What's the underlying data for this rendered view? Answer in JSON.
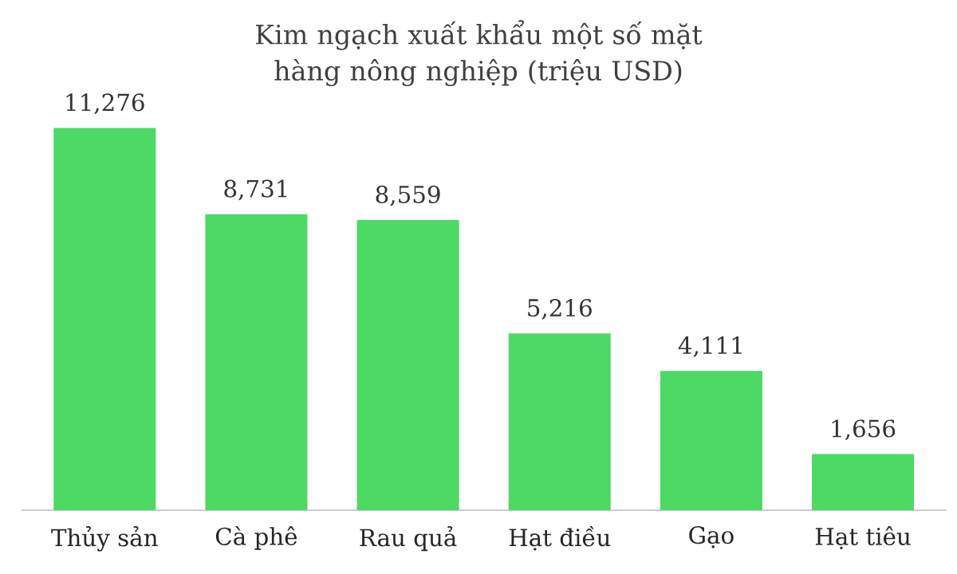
{
  "chart_data": {
    "type": "bar",
    "title": "Kim ngạch xuất khẩu một số mặt hàng nông nghiệp (triệu USD)",
    "categories": [
      "Thủy sản",
      "Cà phê",
      "Rau quả",
      "Hạt điều",
      "Gạo",
      "Hạt tiêu"
    ],
    "values": [
      11276,
      8731,
      8559,
      5216,
      4111,
      1656
    ],
    "value_labels": [
      "11,276",
      "8,731",
      "8,559",
      "5,216",
      "4,111",
      "1,656"
    ],
    "color": "#4cd964"
  }
}
